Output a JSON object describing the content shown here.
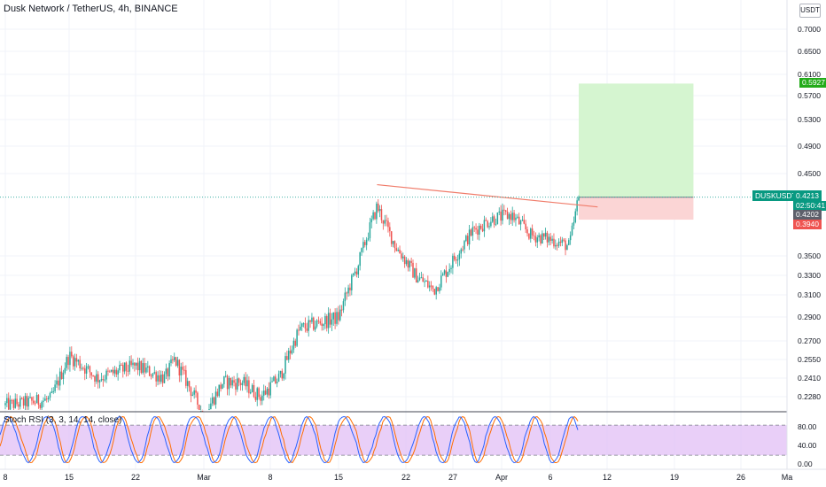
{
  "header": {
    "title": "Dusk Network / TetherUS, 4h, BINANCE",
    "unit_badge": "USDT"
  },
  "indicator": {
    "title": "Stoch RSI (3, 3, 14, 14, close)",
    "levels": [
      "80.00",
      "40.00",
      "0.00"
    ],
    "band_upper": 80,
    "band_lower": 20
  },
  "symbol_tag": {
    "symbol": "DUSKUSDT",
    "price": "0.4213",
    "countdown": "02:50:41"
  },
  "price_tags": {
    "target": "0.5927",
    "current_bid": "0.4202",
    "stop": "0.3940"
  },
  "colors": {
    "up": "#26a69a",
    "down": "#ef5350",
    "target_zone": "#d5f5d0",
    "stop_zone": "#fbd5d5",
    "target_tag": "#22ab19",
    "stop_tag": "#ef5350",
    "symbol_tag": "#089981",
    "trendline": "#f07c6a",
    "k_line": "#2962ff",
    "d_line": "#ff6d00",
    "band_fill": "#e1bff5"
  },
  "chart_data": [
    {
      "type": "candlestick",
      "title": "Dusk Network / TetherUS, 4h, BINANCE",
      "y_axis_ticks": [
        "0.7000",
        "0.6500",
        "0.6100",
        "0.5700",
        "0.5300",
        "0.4900",
        "0.4500",
        "0.3500",
        "0.3300",
        "0.3100",
        "0.2900",
        "0.2700",
        "0.2550",
        "0.2410",
        "0.2280"
      ],
      "x_axis_ticks": [
        "8",
        "15",
        "22",
        "Mar",
        "8",
        "15",
        "22",
        "27",
        "Apr",
        "6",
        "12",
        "19",
        "26",
        "Ma"
      ],
      "ylim": [
        0.215,
        0.75
      ],
      "series_outline": [
        {
          "x": "Feb 8",
          "price": 0.222
        },
        {
          "x": "Feb 13",
          "price": 0.226
        },
        {
          "x": "Feb 15",
          "price": 0.258
        },
        {
          "x": "Feb 18",
          "price": 0.241
        },
        {
          "x": "Feb 22",
          "price": 0.25
        },
        {
          "x": "Feb 25",
          "price": 0.241
        },
        {
          "x": "Feb 26",
          "price": 0.255
        },
        {
          "x": "Mar 1",
          "price": 0.215
        },
        {
          "x": "Mar 3",
          "price": 0.238
        },
        {
          "x": "Mar 5",
          "price": 0.238
        },
        {
          "x": "Mar 7",
          "price": 0.228
        },
        {
          "x": "Mar 9",
          "price": 0.242
        },
        {
          "x": "Mar 11",
          "price": 0.28
        },
        {
          "x": "Mar 13",
          "price": 0.285
        },
        {
          "x": "Mar 15",
          "price": 0.29
        },
        {
          "x": "Mar 17",
          "price": 0.34
        },
        {
          "x": "Mar 19",
          "price": 0.41
        },
        {
          "x": "Mar 21",
          "price": 0.36
        },
        {
          "x": "Mar 23",
          "price": 0.33
        },
        {
          "x": "Mar 25",
          "price": 0.315
        },
        {
          "x": "Mar 27",
          "price": 0.345
        },
        {
          "x": "Mar 29",
          "price": 0.38
        },
        {
          "x": "Mar 31",
          "price": 0.395
        },
        {
          "x": "Apr 2",
          "price": 0.4
        },
        {
          "x": "Apr 4",
          "price": 0.375
        },
        {
          "x": "Apr 6",
          "price": 0.37
        },
        {
          "x": "Apr 8",
          "price": 0.362
        },
        {
          "x": "Apr 9",
          "price": 0.4213
        }
      ],
      "trendline": {
        "from": {
          "x": "Mar 19",
          "price": 0.4365
        },
        "to": {
          "x": "Apr 11",
          "price": 0.4095
        }
      },
      "position": {
        "entry": 0.4213,
        "target": 0.5927,
        "stop": 0.394,
        "from": "Apr 9",
        "to": "Apr 21"
      },
      "last_price": 0.4213,
      "bid_price": 0.4202
    },
    {
      "type": "line",
      "title": "Stoch RSI (3, 3, 14, 14, close)",
      "y_axis_ticks": [
        "80.00",
        "40.00",
        "0.00"
      ],
      "ylim": [
        -8,
        105
      ],
      "series": [
        {
          "name": "K"
        },
        {
          "name": "D"
        }
      ],
      "oscillation_range": [
        5,
        97
      ],
      "band": [
        20,
        80
      ]
    }
  ]
}
